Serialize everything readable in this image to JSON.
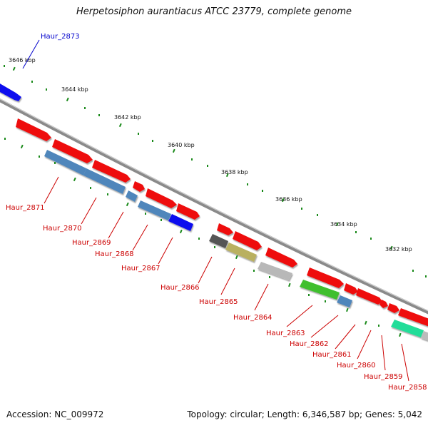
{
  "title": "Herpetosiphon aurantiacus ATCC 23779, complete genome",
  "accession": "Accession: NC_009972",
  "topology": "Topology: circular; Length: 6,346,587 bp; Genes: 5,042",
  "colors": {
    "forward_cds": "#ee1111",
    "reverse_cds_steel": "#4f86bb",
    "highlight_blue": "#1111ee",
    "backbone": "#888888",
    "tick": "#1a8a1a",
    "label_red": "#cc0000",
    "label_blue": "#0000cc"
  },
  "kbp_ticks": [
    {
      "label": "3646 kbp"
    },
    {
      "label": "3644 kbp"
    },
    {
      "label": "3642 kbp"
    },
    {
      "label": "3640 kbp"
    },
    {
      "label": "3638 kbp"
    },
    {
      "label": "3636 kbp"
    },
    {
      "label": "3634 kbp"
    },
    {
      "label": "3632 kbp"
    }
  ],
  "gene_labels": [
    {
      "name": "Haur_2873",
      "color": "blue"
    },
    {
      "name": "Haur_2871",
      "color": "red"
    },
    {
      "name": "Haur_2870",
      "color": "red"
    },
    {
      "name": "Haur_2869",
      "color": "red"
    },
    {
      "name": "Haur_2868",
      "color": "red"
    },
    {
      "name": "Haur_2867",
      "color": "red"
    },
    {
      "name": "Haur_2866",
      "color": "red"
    },
    {
      "name": "Haur_2865",
      "color": "red"
    },
    {
      "name": "Haur_2864",
      "color": "red"
    },
    {
      "name": "Haur_2863",
      "color": "red"
    },
    {
      "name": "Haur_2862",
      "color": "red"
    },
    {
      "name": "Haur_2861",
      "color": "red"
    },
    {
      "name": "Haur_2860",
      "color": "red"
    },
    {
      "name": "Haur_2859",
      "color": "red"
    },
    {
      "name": "Haur_2858",
      "color": "red"
    }
  ]
}
